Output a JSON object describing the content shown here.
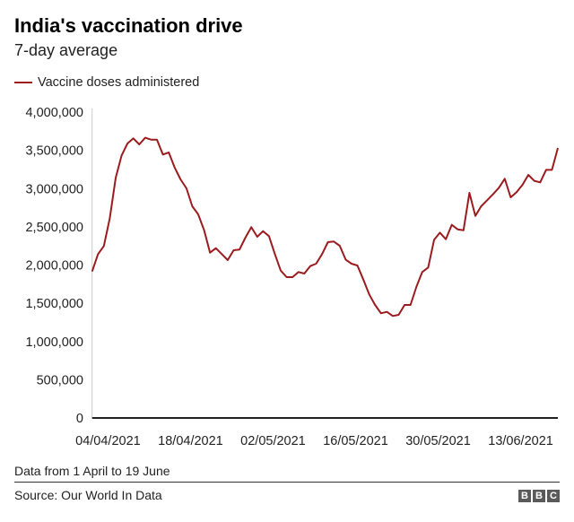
{
  "chart_data": {
    "type": "line",
    "title": "India's vaccination drive",
    "subtitle": "7-day average",
    "xlabel": "",
    "ylabel": "",
    "ylim": [
      0,
      4000000
    ],
    "xlim": [
      "01/04/2021",
      "19/06/2021"
    ],
    "y_ticks": [
      0,
      500000,
      1000000,
      1500000,
      2000000,
      2500000,
      3000000,
      3500000,
      4000000
    ],
    "y_tick_labels": [
      "0",
      "500,000",
      "1,000,000",
      "1,500,000",
      "2,000,000",
      "2,500,000",
      "3,000,000",
      "3,500,000",
      "4,000,000"
    ],
    "x_ticks": [
      "04/04/2021",
      "18/04/2021",
      "02/05/2021",
      "16/05/2021",
      "30/05/2021",
      "13/06/2021"
    ],
    "grid": false,
    "legend": "top-left",
    "series": [
      {
        "name": "Vaccine doses administered",
        "color": "#9b1c1f",
        "x": [
          "01/04/2021",
          "02/04/2021",
          "03/04/2021",
          "04/04/2021",
          "05/04/2021",
          "06/04/2021",
          "07/04/2021",
          "08/04/2021",
          "09/04/2021",
          "10/04/2021",
          "11/04/2021",
          "12/04/2021",
          "13/04/2021",
          "14/04/2021",
          "15/04/2021",
          "16/04/2021",
          "17/04/2021",
          "18/04/2021",
          "19/04/2021",
          "20/04/2021",
          "21/04/2021",
          "22/04/2021",
          "23/04/2021",
          "24/04/2021",
          "25/04/2021",
          "26/04/2021",
          "27/04/2021",
          "28/04/2021",
          "29/04/2021",
          "30/04/2021",
          "01/05/2021",
          "02/05/2021",
          "03/05/2021",
          "04/05/2021",
          "05/05/2021",
          "06/05/2021",
          "07/05/2021",
          "08/05/2021",
          "09/05/2021",
          "10/05/2021",
          "11/05/2021",
          "12/05/2021",
          "13/05/2021",
          "14/05/2021",
          "15/05/2021",
          "16/05/2021",
          "17/05/2021",
          "18/05/2021",
          "19/05/2021",
          "20/05/2021",
          "21/05/2021",
          "22/05/2021",
          "23/05/2021",
          "24/05/2021",
          "25/05/2021",
          "26/05/2021",
          "27/05/2021",
          "28/05/2021",
          "29/05/2021",
          "30/05/2021",
          "31/05/2021",
          "01/06/2021",
          "02/06/2021",
          "03/06/2021",
          "04/06/2021",
          "05/06/2021",
          "06/06/2021",
          "07/06/2021",
          "08/06/2021",
          "09/06/2021",
          "10/06/2021",
          "11/06/2021",
          "12/06/2021",
          "13/06/2021",
          "14/06/2021",
          "15/06/2021",
          "16/06/2021",
          "17/06/2021",
          "18/06/2021",
          "19/06/2021"
        ],
        "values": [
          1916000,
          2143000,
          2249000,
          2612000,
          3140000,
          3433000,
          3589000,
          3656000,
          3578000,
          3664000,
          3640000,
          3640000,
          3445000,
          3472000,
          3276000,
          3120000,
          3003000,
          2768000,
          2663000,
          2455000,
          2162000,
          2221000,
          2143000,
          2065000,
          2194000,
          2202000,
          2358000,
          2495000,
          2370000,
          2443000,
          2378000,
          2143000,
          1927000,
          1842000,
          1842000,
          1908000,
          1889000,
          1986000,
          2018000,
          2143000,
          2299000,
          2307000,
          2252000,
          2072000,
          2018000,
          1994000,
          1810000,
          1615000,
          1478000,
          1369000,
          1388000,
          1334000,
          1349000,
          1478000,
          1478000,
          1713000,
          1908000,
          1967000,
          2330000,
          2424000,
          2338000,
          2526000,
          2467000,
          2455000,
          2944000,
          2643000,
          2768000,
          2847000,
          2925000,
          3011000,
          3128000,
          2886000,
          2952000,
          3050000,
          3179000,
          3101000,
          3081000,
          3245000,
          3245000,
          3531000
        ]
      }
    ]
  },
  "footer": {
    "note": "Data from 1 April to 19 June",
    "source": "Source: Our World In Data",
    "logo": "BBC"
  }
}
